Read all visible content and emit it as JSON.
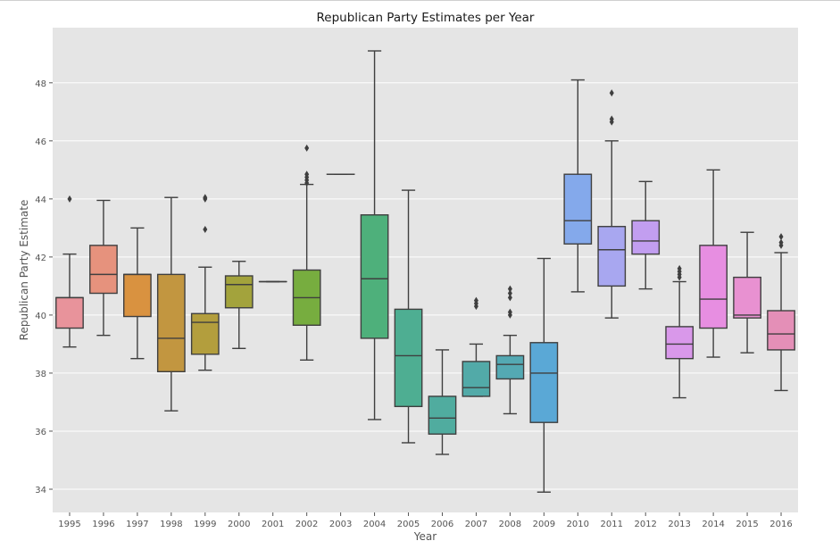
{
  "chart_data": {
    "type": "box",
    "title": "Republican Party Estimates per Year",
    "xlabel": "Year",
    "ylabel": "Republican Party Estimate",
    "ylim": [
      33.2,
      49.9
    ],
    "yticks": [
      34,
      36,
      38,
      40,
      42,
      44,
      46,
      48
    ],
    "grid": true,
    "categories": [
      "1995",
      "1996",
      "1997",
      "1998",
      "1999",
      "2000",
      "2001",
      "2002",
      "2003",
      "2004",
      "2005",
      "2006",
      "2007",
      "2008",
      "2009",
      "2010",
      "2011",
      "2012",
      "2013",
      "2014",
      "2015",
      "2016"
    ],
    "boxes": [
      {
        "year": "1995",
        "whislo": 38.9,
        "q1": 39.55,
        "med": 40.6,
        "q3": 40.6,
        "whishi": 42.1,
        "fliers": [
          44.0
        ],
        "color": "#e8939b"
      },
      {
        "year": "1996",
        "whislo": 39.3,
        "q1": 40.75,
        "med": 41.4,
        "q3": 42.4,
        "whishi": 43.95,
        "fliers": [],
        "color": "#e6927d"
      },
      {
        "year": "1997",
        "whislo": 38.5,
        "q1": 39.95,
        "med": 41.4,
        "q3": 41.4,
        "whishi": 43.0,
        "fliers": [],
        "color": "#d99240"
      },
      {
        "year": "1998",
        "whislo": 36.7,
        "q1": 38.05,
        "med": 39.2,
        "q3": 41.4,
        "whishi": 44.05,
        "fliers": [],
        "color": "#c29640"
      },
      {
        "year": "1999",
        "whislo": 38.1,
        "q1": 38.65,
        "med": 39.75,
        "q3": 40.05,
        "whishi": 41.65,
        "fliers": [
          42.95,
          44.0,
          44.05
        ],
        "color": "#b39e3d"
      },
      {
        "year": "2000",
        "whislo": 38.85,
        "q1": 40.25,
        "med": 41.05,
        "q3": 41.35,
        "whishi": 41.85,
        "fliers": [],
        "color": "#a3a33c"
      },
      {
        "year": "2001",
        "whislo": 41.15,
        "q1": 41.15,
        "med": 41.15,
        "q3": 41.15,
        "whishi": 41.15,
        "fliers": [],
        "color": "#8fa83c"
      },
      {
        "year": "2002",
        "whislo": 38.45,
        "q1": 39.65,
        "med": 40.6,
        "q3": 41.55,
        "whishi": 44.5,
        "fliers": [
          44.55,
          44.65,
          44.75,
          44.85,
          45.75
        ],
        "color": "#77ad3f"
      },
      {
        "year": "2003",
        "whislo": 44.85,
        "q1": 44.85,
        "med": 44.85,
        "q3": 44.85,
        "whishi": 44.85,
        "fliers": [],
        "color": "#5db15a"
      },
      {
        "year": "2004",
        "whislo": 36.4,
        "q1": 39.2,
        "med": 41.25,
        "q3": 43.45,
        "whishi": 49.1,
        "fliers": [],
        "color": "#4eb07b"
      },
      {
        "year": "2005",
        "whislo": 35.6,
        "q1": 36.85,
        "med": 38.6,
        "q3": 40.2,
        "whishi": 44.3,
        "fliers": [],
        "color": "#4eae92"
      },
      {
        "year": "2006",
        "whislo": 35.2,
        "q1": 35.9,
        "med": 36.45,
        "q3": 37.2,
        "whishi": 38.8,
        "fliers": [],
        "color": "#50ac9f"
      },
      {
        "year": "2007",
        "whislo": 37.2,
        "q1": 37.2,
        "med": 37.5,
        "q3": 38.4,
        "whishi": 39.0,
        "fliers": [
          40.3,
          40.4,
          40.5
        ],
        "color": "#52aaa8"
      },
      {
        "year": "2008",
        "whislo": 36.6,
        "q1": 37.8,
        "med": 38.3,
        "q3": 38.6,
        "whishi": 39.3,
        "fliers": [
          40.0,
          40.1,
          40.6,
          40.75,
          40.9
        ],
        "color": "#54a9b3"
      },
      {
        "year": "2009",
        "whislo": 33.9,
        "q1": 36.3,
        "med": 38.0,
        "q3": 39.05,
        "whishi": 41.95,
        "fliers": [],
        "color": "#5aa8d6"
      },
      {
        "year": "2010",
        "whislo": 40.8,
        "q1": 42.45,
        "med": 43.25,
        "q3": 44.85,
        "whishi": 48.1,
        "fliers": [],
        "color": "#84a9eb"
      },
      {
        "year": "2011",
        "whislo": 39.9,
        "q1": 41.0,
        "med": 42.25,
        "q3": 43.05,
        "whishi": 46.0,
        "fliers": [
          46.65,
          46.75,
          47.65
        ],
        "color": "#a8a7f0"
      },
      {
        "year": "2012",
        "whislo": 40.9,
        "q1": 42.1,
        "med": 42.55,
        "q3": 43.25,
        "whishi": 44.6,
        "fliers": [],
        "color": "#c29ef0"
      },
      {
        "year": "2013",
        "whislo": 37.15,
        "q1": 38.5,
        "med": 39.0,
        "q3": 39.6,
        "whishi": 41.15,
        "fliers": [
          41.3,
          41.4,
          41.5,
          41.6
        ],
        "color": "#d998ea"
      },
      {
        "year": "2014",
        "whislo": 38.55,
        "q1": 39.55,
        "med": 40.55,
        "q3": 42.4,
        "whishi": 45.0,
        "fliers": [],
        "color": "#e78ee1"
      },
      {
        "year": "2015",
        "whislo": 38.7,
        "q1": 39.9,
        "med": 40.0,
        "q3": 41.3,
        "whishi": 42.85,
        "fliers": [],
        "color": "#e891d1"
      },
      {
        "year": "2016",
        "whislo": 37.4,
        "q1": 38.8,
        "med": 39.35,
        "q3": 40.15,
        "whishi": 42.15,
        "fliers": [
          42.4,
          42.5,
          42.7
        ],
        "color": "#e48fb7"
      }
    ],
    "colors": {
      "plot_bg": "#e5e5e5",
      "grid": "#ffffff",
      "line": "#3f3f3f",
      "text": "#555555",
      "title": "#1a1a1a"
    }
  }
}
